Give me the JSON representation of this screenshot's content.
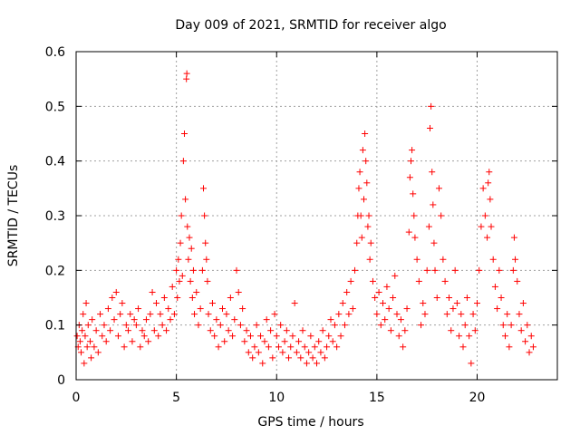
{
  "chart_data": {
    "type": "scatter",
    "title": "Day 009 of 2021, SRMTID for receiver algo",
    "xlabel": "GPS time / hours",
    "ylabel": "SRMTID / TECUs",
    "xlim": [
      0,
      24
    ],
    "ylim": [
      0,
      0.6
    ],
    "x_ticks": [
      0,
      5,
      10,
      15,
      20
    ],
    "y_ticks": [
      0,
      0.1,
      0.2,
      0.3,
      0.4,
      0.5,
      0.6
    ],
    "x_tick_labels": [
      "0",
      "5",
      "10",
      "15",
      "20"
    ],
    "y_tick_labels": [
      "0",
      "0.1",
      "0.2",
      "0.3",
      "0.4",
      "0.5",
      "0.6"
    ],
    "grid": true,
    "marker": "+",
    "marker_color": "#ff0000",
    "series": [
      {
        "name": "SRMTID",
        "points": [
          [
            0.05,
            0.08
          ],
          [
            0.1,
            0.06
          ],
          [
            0.15,
            0.1
          ],
          [
            0.2,
            0.07
          ],
          [
            0.25,
            0.05
          ],
          [
            0.3,
            0.09
          ],
          [
            0.35,
            0.12
          ],
          [
            0.4,
            0.03
          ],
          [
            0.45,
            0.08
          ],
          [
            0.5,
            0.14
          ],
          [
            0.55,
            0.06
          ],
          [
            0.6,
            0.1
          ],
          [
            0.7,
            0.07
          ],
          [
            0.75,
            0.04
          ],
          [
            0.8,
            0.11
          ],
          [
            0.9,
            0.06
          ],
          [
            1.0,
            0.09
          ],
          [
            1.1,
            0.05
          ],
          [
            1.2,
            0.12
          ],
          [
            1.3,
            0.08
          ],
          [
            1.4,
            0.1
          ],
          [
            1.5,
            0.07
          ],
          [
            1.6,
            0.13
          ],
          [
            1.7,
            0.09
          ],
          [
            1.8,
            0.15
          ],
          [
            1.9,
            0.11
          ],
          [
            2.0,
            0.16
          ],
          [
            2.1,
            0.08
          ],
          [
            2.2,
            0.12
          ],
          [
            2.3,
            0.14
          ],
          [
            2.4,
            0.06
          ],
          [
            2.5,
            0.1
          ],
          [
            2.6,
            0.09
          ],
          [
            2.7,
            0.12
          ],
          [
            2.8,
            0.07
          ],
          [
            2.9,
            0.11
          ],
          [
            3.0,
            0.1
          ],
          [
            3.1,
            0.13
          ],
          [
            3.2,
            0.06
          ],
          [
            3.3,
            0.09
          ],
          [
            3.4,
            0.08
          ],
          [
            3.5,
            0.11
          ],
          [
            3.6,
            0.07
          ],
          [
            3.7,
            0.12
          ],
          [
            3.8,
            0.16
          ],
          [
            3.9,
            0.09
          ],
          [
            4.0,
            0.14
          ],
          [
            4.1,
            0.08
          ],
          [
            4.2,
            0.12
          ],
          [
            4.3,
            0.1
          ],
          [
            4.4,
            0.15
          ],
          [
            4.5,
            0.09
          ],
          [
            4.6,
            0.13
          ],
          [
            4.7,
            0.11
          ],
          [
            4.8,
            0.17
          ],
          [
            4.9,
            0.12
          ],
          [
            5.0,
            0.2
          ],
          [
            5.05,
            0.15
          ],
          [
            5.1,
            0.22
          ],
          [
            5.15,
            0.18
          ],
          [
            5.2,
            0.25
          ],
          [
            5.25,
            0.3
          ],
          [
            5.3,
            0.19
          ],
          [
            5.35,
            0.4
          ],
          [
            5.4,
            0.45
          ],
          [
            5.45,
            0.33
          ],
          [
            5.5,
            0.55
          ],
          [
            5.52,
            0.56
          ],
          [
            5.55,
            0.28
          ],
          [
            5.6,
            0.22
          ],
          [
            5.65,
            0.26
          ],
          [
            5.7,
            0.18
          ],
          [
            5.75,
            0.24
          ],
          [
            5.8,
            0.15
          ],
          [
            5.85,
            0.2
          ],
          [
            5.9,
            0.12
          ],
          [
            6.0,
            0.16
          ],
          [
            6.1,
            0.1
          ],
          [
            6.2,
            0.13
          ],
          [
            6.3,
            0.2
          ],
          [
            6.35,
            0.35
          ],
          [
            6.4,
            0.3
          ],
          [
            6.45,
            0.25
          ],
          [
            6.5,
            0.22
          ],
          [
            6.55,
            0.18
          ],
          [
            6.6,
            0.12
          ],
          [
            6.7,
            0.09
          ],
          [
            6.8,
            0.14
          ],
          [
            6.9,
            0.08
          ],
          [
            7.0,
            0.11
          ],
          [
            7.1,
            0.06
          ],
          [
            7.2,
            0.1
          ],
          [
            7.3,
            0.13
          ],
          [
            7.4,
            0.07
          ],
          [
            7.5,
            0.12
          ],
          [
            7.6,
            0.09
          ],
          [
            7.7,
            0.15
          ],
          [
            7.8,
            0.08
          ],
          [
            7.9,
            0.11
          ],
          [
            8.0,
            0.2
          ],
          [
            8.1,
            0.16
          ],
          [
            8.2,
            0.1
          ],
          [
            8.3,
            0.13
          ],
          [
            8.4,
            0.07
          ],
          [
            8.5,
            0.09
          ],
          [
            8.6,
            0.05
          ],
          [
            8.7,
            0.08
          ],
          [
            8.8,
            0.04
          ],
          [
            8.9,
            0.06
          ],
          [
            9.0,
            0.1
          ],
          [
            9.1,
            0.05
          ],
          [
            9.2,
            0.08
          ],
          [
            9.3,
            0.03
          ],
          [
            9.4,
            0.07
          ],
          [
            9.5,
            0.11
          ],
          [
            9.6,
            0.06
          ],
          [
            9.7,
            0.09
          ],
          [
            9.8,
            0.04
          ],
          [
            9.9,
            0.12
          ],
          [
            10.0,
            0.08
          ],
          [
            10.1,
            0.06
          ],
          [
            10.2,
            0.1
          ],
          [
            10.3,
            0.05
          ],
          [
            10.4,
            0.07
          ],
          [
            10.5,
            0.09
          ],
          [
            10.6,
            0.04
          ],
          [
            10.7,
            0.06
          ],
          [
            10.8,
            0.08
          ],
          [
            10.9,
            0.14
          ],
          [
            11.0,
            0.05
          ],
          [
            11.1,
            0.07
          ],
          [
            11.2,
            0.04
          ],
          [
            11.3,
            0.09
          ],
          [
            11.4,
            0.06
          ],
          [
            11.5,
            0.03
          ],
          [
            11.6,
            0.05
          ],
          [
            11.7,
            0.08
          ],
          [
            11.8,
            0.04
          ],
          [
            11.9,
            0.06
          ],
          [
            12.0,
            0.03
          ],
          [
            12.1,
            0.07
          ],
          [
            12.2,
            0.05
          ],
          [
            12.3,
            0.09
          ],
          [
            12.4,
            0.04
          ],
          [
            12.5,
            0.06
          ],
          [
            12.6,
            0.08
          ],
          [
            12.7,
            0.11
          ],
          [
            12.8,
            0.07
          ],
          [
            12.9,
            0.1
          ],
          [
            13.0,
            0.06
          ],
          [
            13.1,
            0.12
          ],
          [
            13.2,
            0.08
          ],
          [
            13.3,
            0.14
          ],
          [
            13.4,
            0.1
          ],
          [
            13.5,
            0.16
          ],
          [
            13.6,
            0.12
          ],
          [
            13.7,
            0.18
          ],
          [
            13.8,
            0.13
          ],
          [
            13.9,
            0.2
          ],
          [
            14.0,
            0.25
          ],
          [
            14.05,
            0.3
          ],
          [
            14.1,
            0.35
          ],
          [
            14.15,
            0.38
          ],
          [
            14.2,
            0.3
          ],
          [
            14.25,
            0.26
          ],
          [
            14.3,
            0.42
          ],
          [
            14.35,
            0.33
          ],
          [
            14.4,
            0.45
          ],
          [
            14.45,
            0.4
          ],
          [
            14.5,
            0.36
          ],
          [
            14.55,
            0.28
          ],
          [
            14.6,
            0.3
          ],
          [
            14.65,
            0.22
          ],
          [
            14.7,
            0.25
          ],
          [
            14.8,
            0.18
          ],
          [
            14.9,
            0.15
          ],
          [
            15.0,
            0.12
          ],
          [
            15.1,
            0.16
          ],
          [
            15.2,
            0.1
          ],
          [
            15.3,
            0.14
          ],
          [
            15.4,
            0.11
          ],
          [
            15.5,
            0.17
          ],
          [
            15.6,
            0.13
          ],
          [
            15.7,
            0.09
          ],
          [
            15.8,
            0.15
          ],
          [
            15.9,
            0.19
          ],
          [
            16.0,
            0.12
          ],
          [
            16.1,
            0.08
          ],
          [
            16.2,
            0.11
          ],
          [
            16.3,
            0.06
          ],
          [
            16.4,
            0.09
          ],
          [
            16.5,
            0.13
          ],
          [
            16.6,
            0.27
          ],
          [
            16.65,
            0.37
          ],
          [
            16.7,
            0.4
          ],
          [
            16.75,
            0.42
          ],
          [
            16.8,
            0.34
          ],
          [
            16.85,
            0.3
          ],
          [
            16.9,
            0.26
          ],
          [
            17.0,
            0.22
          ],
          [
            17.1,
            0.18
          ],
          [
            17.2,
            0.1
          ],
          [
            17.3,
            0.14
          ],
          [
            17.4,
            0.12
          ],
          [
            17.5,
            0.2
          ],
          [
            17.6,
            0.28
          ],
          [
            17.65,
            0.46
          ],
          [
            17.7,
            0.5
          ],
          [
            17.75,
            0.38
          ],
          [
            17.8,
            0.32
          ],
          [
            17.85,
            0.25
          ],
          [
            17.9,
            0.2
          ],
          [
            18.0,
            0.15
          ],
          [
            18.1,
            0.35
          ],
          [
            18.2,
            0.3
          ],
          [
            18.3,
            0.22
          ],
          [
            18.4,
            0.18
          ],
          [
            18.5,
            0.12
          ],
          [
            18.6,
            0.15
          ],
          [
            18.7,
            0.09
          ],
          [
            18.8,
            0.13
          ],
          [
            18.9,
            0.2
          ],
          [
            19.0,
            0.14
          ],
          [
            19.1,
            0.08
          ],
          [
            19.2,
            0.12
          ],
          [
            19.3,
            0.06
          ],
          [
            19.4,
            0.1
          ],
          [
            19.5,
            0.15
          ],
          [
            19.6,
            0.08
          ],
          [
            19.7,
            0.03
          ],
          [
            19.8,
            0.12
          ],
          [
            19.9,
            0.09
          ],
          [
            20.0,
            0.14
          ],
          [
            20.1,
            0.2
          ],
          [
            20.2,
            0.28
          ],
          [
            20.3,
            0.35
          ],
          [
            20.4,
            0.3
          ],
          [
            20.5,
            0.26
          ],
          [
            20.55,
            0.36
          ],
          [
            20.6,
            0.38
          ],
          [
            20.65,
            0.33
          ],
          [
            20.7,
            0.28
          ],
          [
            20.8,
            0.22
          ],
          [
            20.9,
            0.17
          ],
          [
            21.0,
            0.13
          ],
          [
            21.1,
            0.2
          ],
          [
            21.2,
            0.15
          ],
          [
            21.3,
            0.1
          ],
          [
            21.4,
            0.08
          ],
          [
            21.5,
            0.12
          ],
          [
            21.6,
            0.06
          ],
          [
            21.7,
            0.1
          ],
          [
            21.8,
            0.2
          ],
          [
            21.85,
            0.26
          ],
          [
            21.9,
            0.22
          ],
          [
            22.0,
            0.18
          ],
          [
            22.1,
            0.12
          ],
          [
            22.2,
            0.09
          ],
          [
            22.3,
            0.14
          ],
          [
            22.4,
            0.07
          ],
          [
            22.5,
            0.1
          ],
          [
            22.6,
            0.05
          ],
          [
            22.7,
            0.08
          ],
          [
            22.8,
            0.06
          ]
        ]
      }
    ]
  }
}
